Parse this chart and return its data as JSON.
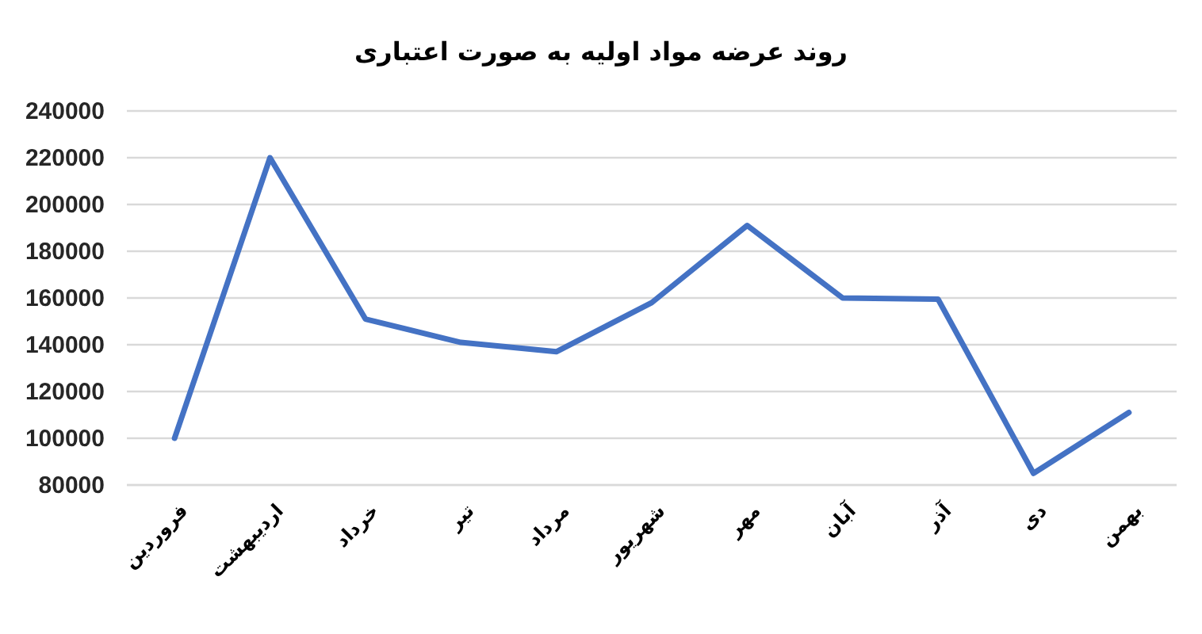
{
  "chart_data": {
    "type": "line",
    "title": "روند عرضه مواد اولیه به صورت اعتباری",
    "categories": [
      "فروردین",
      "اردیبهشت",
      "خرداد",
      "تیر",
      "مرداد",
      "شهریور",
      "مهر",
      "آبان",
      "آذر",
      "دی",
      "بهمن"
    ],
    "series": [
      {
        "color": "#4472c4",
        "values": [
          100000,
          220000,
          151000,
          141000,
          137000,
          158000,
          191000,
          160000,
          159500,
          85000,
          111000
        ]
      }
    ],
    "ylim": [
      80000,
      240000
    ],
    "yticks": [
      80000,
      100000,
      120000,
      140000,
      160000,
      180000,
      200000,
      220000,
      240000
    ],
    "grid": "y",
    "marker": "none",
    "line_style": "solid"
  }
}
